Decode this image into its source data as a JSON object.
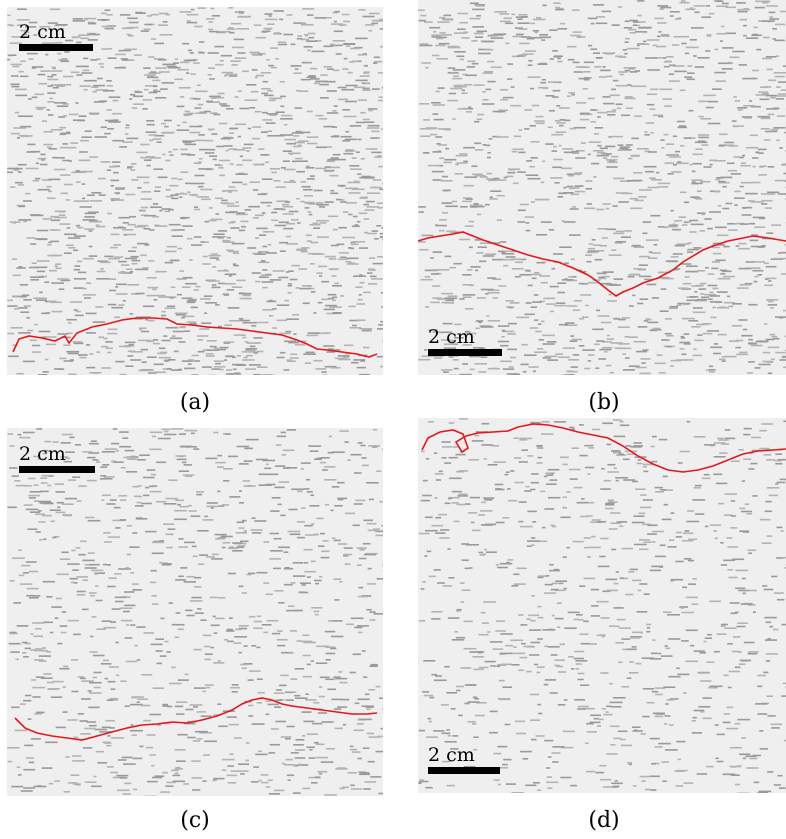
{
  "panels": [
    {
      "id": "a",
      "caption": "(a)",
      "scale_label": "2 cm"
    },
    {
      "id": "b",
      "caption": "(b)",
      "scale_label": "2 cm"
    },
    {
      "id": "c",
      "caption": "(c)",
      "scale_label": "2 cm"
    },
    {
      "id": "d",
      "caption": "(d)",
      "scale_label": "2 cm"
    }
  ],
  "colors": {
    "background": "#efefef",
    "texture": "#9a9a9a",
    "front_line": "#e8161b",
    "scale_bar": "#000000"
  }
}
